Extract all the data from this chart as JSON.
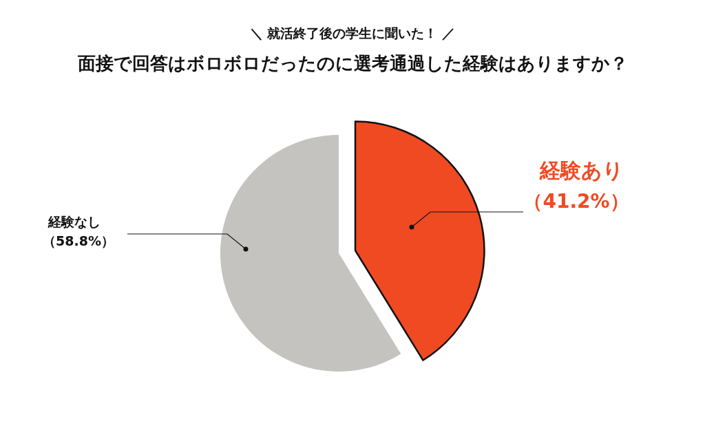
{
  "chart_data": {
    "type": "pie",
    "subtitle": "＼ 就活終了後の学生に聞いた！ ／",
    "title": "面接で回答はボロボロだったのに選考通過した経験はありますか？",
    "categories": [
      "経験あり",
      "経験なし"
    ],
    "values": [
      41.2,
      58.8
    ],
    "colors": [
      "#f04a23",
      "#c4c3bf"
    ],
    "value_labels": [
      "（41.2%）",
      "（58.8%）"
    ],
    "legend": false
  }
}
